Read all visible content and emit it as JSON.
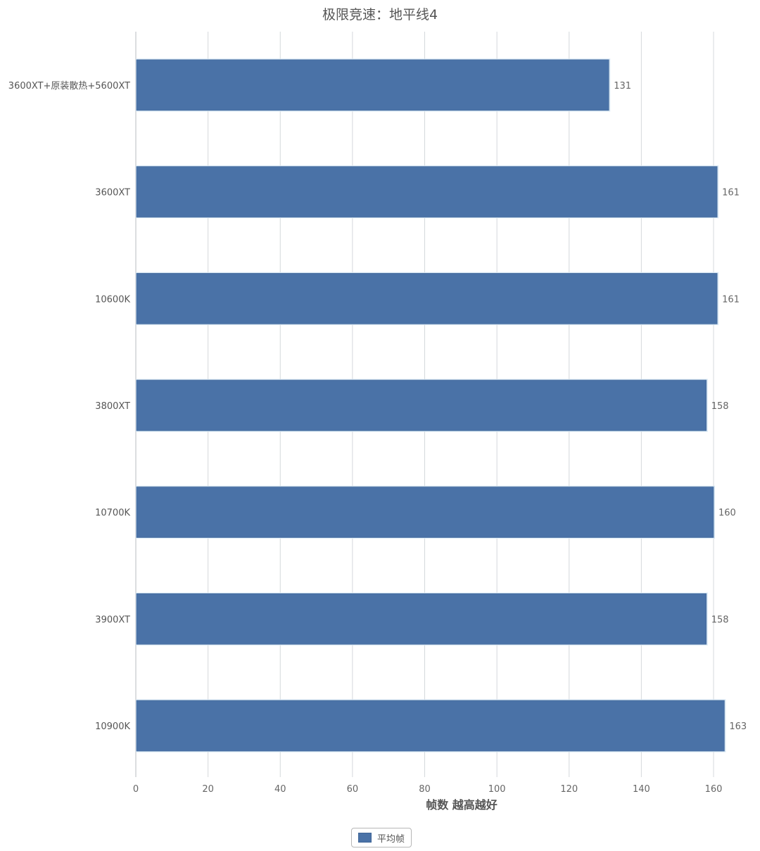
{
  "chart_data": {
    "type": "bar",
    "orientation": "horizontal",
    "title": "极限竞速：地平线4",
    "xlabel": "帧数 越高越好",
    "ylabel": "",
    "xlim": [
      0,
      160
    ],
    "xticks": [
      0,
      20,
      40,
      60,
      80,
      100,
      120,
      140,
      160
    ],
    "grid": true,
    "legend_position": "bottom-center",
    "categories": [
      "3600XT+原装散热+5600XT",
      "3600XT",
      "10600K",
      "3800XT",
      "10700K",
      "3900XT",
      "10900K"
    ],
    "series": [
      {
        "name": "平均帧",
        "color": "#4a72a7",
        "values": [
          131,
          161,
          161,
          158,
          160,
          158,
          163
        ]
      }
    ]
  }
}
